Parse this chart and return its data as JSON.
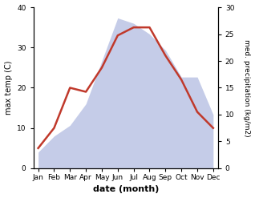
{
  "months": [
    "Jan",
    "Feb",
    "Mar",
    "Apr",
    "May",
    "Jun",
    "Jul",
    "Aug",
    "Sep",
    "Oct",
    "Nov",
    "Dec"
  ],
  "temperature": [
    5,
    10,
    20,
    19,
    25,
    33,
    35,
    35,
    28,
    22,
    14,
    10
  ],
  "precipitation": [
    3,
    6,
    8,
    12,
    20,
    28,
    27,
    25,
    22,
    17,
    17,
    10
  ],
  "temp_color": "#c0392b",
  "precip_fill_color": "#c5cce8",
  "xlabel": "date (month)",
  "ylabel_left": "max temp (C)",
  "ylabel_right": "med. precipitation (kg/m2)",
  "ylim_left": [
    0,
    40
  ],
  "ylim_right": [
    0,
    30
  ],
  "yticks_left": [
    0,
    10,
    20,
    30,
    40
  ],
  "yticks_right": [
    0,
    5,
    10,
    15,
    20,
    25,
    30
  ],
  "background_color": "#ffffff",
  "line_width": 1.8,
  "fig_width": 3.18,
  "fig_height": 2.47,
  "dpi": 100
}
